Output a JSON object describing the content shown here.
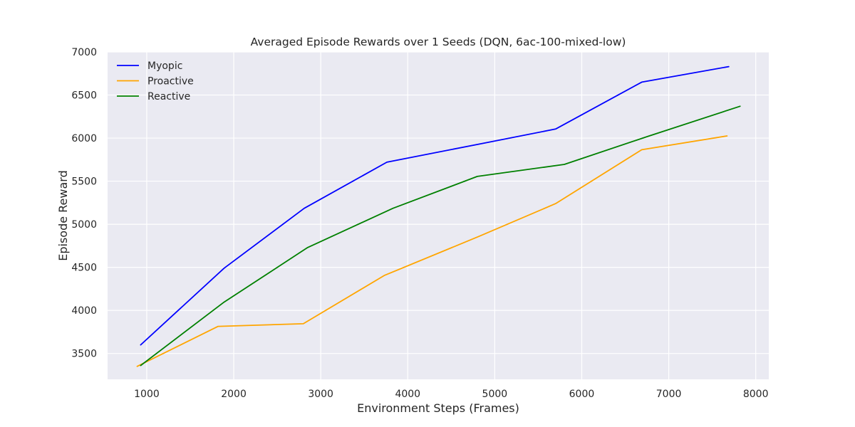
{
  "chart_data": {
    "type": "line",
    "title": "Averaged Episode Rewards over 1 Seeds (DQN, 6ac-100-mixed-low)",
    "xlabel": "Environment Steps (Frames)",
    "ylabel": "Episode Reward",
    "xlim": [
      550,
      8150
    ],
    "ylim": [
      3200,
      7000
    ],
    "xticks": [
      1000,
      2000,
      3000,
      4000,
      5000,
      6000,
      7000,
      8000
    ],
    "yticks": [
      3500,
      4000,
      4500,
      5000,
      5500,
      6000,
      6500,
      7000
    ],
    "grid": true,
    "legend_position": "top-left",
    "background_color": "#eaeaf2",
    "series": [
      {
        "name": "Myopic",
        "color": "#0000ff",
        "x": [
          930,
          1890,
          2810,
          3760,
          4820,
          5700,
          6690,
          7690
        ],
        "y": [
          3600,
          4490,
          5185,
          5720,
          5930,
          6105,
          6650,
          6830
        ]
      },
      {
        "name": "Proactive",
        "color": "#ffa500",
        "x": [
          890,
          1820,
          2800,
          3730,
          4820,
          5700,
          6690,
          7670
        ],
        "y": [
          3350,
          3815,
          3845,
          4405,
          4860,
          5240,
          5865,
          6025
        ]
      },
      {
        "name": "Reactive",
        "color": "#008000",
        "x": [
          930,
          1880,
          2850,
          3830,
          4800,
          5800,
          6760,
          7820
        ],
        "y": [
          3360,
          4090,
          4730,
          5185,
          5555,
          5695,
          6020,
          6370
        ]
      }
    ]
  }
}
